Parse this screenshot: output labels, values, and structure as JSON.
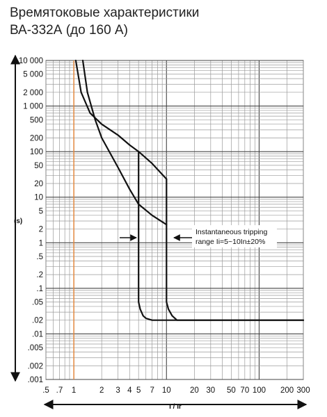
{
  "header": {
    "line1": "Времятоковые характеристики",
    "line2": "ВА-332А (до 160 А)"
  },
  "chart_data": {
    "type": "line",
    "xlabel": "I / Ir",
    "ylabel": "(s)",
    "xscale": "log",
    "yscale": "log",
    "xlim": [
      0.5,
      300
    ],
    "ylim": [
      0.001,
      10000
    ],
    "grid": true,
    "x_ticks": [
      {
        "v": 0.5,
        "t": ".5"
      },
      {
        "v": 0.7,
        "t": ".7"
      },
      {
        "v": 1,
        "t": "1"
      },
      {
        "v": 2,
        "t": "2"
      },
      {
        "v": 3,
        "t": "3"
      },
      {
        "v": 4,
        "t": "4"
      },
      {
        "v": 5,
        "t": "5"
      },
      {
        "v": 7,
        "t": "7"
      },
      {
        "v": 10,
        "t": "10"
      },
      {
        "v": 20,
        "t": "20"
      },
      {
        "v": 30,
        "t": "30"
      },
      {
        "v": 50,
        "t": "50"
      },
      {
        "v": 70,
        "t": "70"
      },
      {
        "v": 100,
        "t": "100"
      },
      {
        "v": 200,
        "t": "200"
      },
      {
        "v": 300,
        "t": "300"
      }
    ],
    "y_ticks": [
      {
        "v": 10000,
        "t": "10 000"
      },
      {
        "v": 5000,
        "t": "5 000"
      },
      {
        "v": 2000,
        "t": "2 000"
      },
      {
        "v": 1000,
        "t": "1 000"
      },
      {
        "v": 500,
        "t": "500"
      },
      {
        "v": 200,
        "t": "200"
      },
      {
        "v": 100,
        "t": "100"
      },
      {
        "v": 50,
        "t": "50"
      },
      {
        "v": 20,
        "t": "20"
      },
      {
        "v": 10,
        "t": "10"
      },
      {
        "v": 5,
        "t": "5"
      },
      {
        "v": 2,
        "t": "2"
      },
      {
        "v": 1,
        "t": "1"
      },
      {
        "v": 0.5,
        "t": ".5"
      },
      {
        "v": 0.2,
        "t": ".2"
      },
      {
        "v": 0.1,
        "t": ".1"
      },
      {
        "v": 0.05,
        "t": ".05"
      },
      {
        "v": 0.02,
        "t": ".02"
      },
      {
        "v": 0.01,
        "t": ".01"
      },
      {
        "v": 0.005,
        "t": ".005"
      },
      {
        "v": 0.002,
        "t": ".002"
      },
      {
        "v": 0.001,
        "t": ".001"
      }
    ],
    "series": [
      {
        "points": [
          [
            1.05,
            10000
          ],
          [
            1.2,
            2000
          ],
          [
            1.5,
            700
          ],
          [
            2,
            400
          ],
          [
            3,
            230
          ],
          [
            4,
            140
          ],
          [
            5,
            100
          ],
          [
            7,
            55
          ],
          [
            10,
            25
          ]
        ],
        "color": "#111111"
      },
      {
        "points": [
          [
            1.25,
            10000
          ],
          [
            1.4,
            2000
          ],
          [
            1.7,
            500
          ],
          [
            2,
            200
          ],
          [
            3,
            45
          ],
          [
            4,
            15
          ],
          [
            5,
            7
          ],
          [
            7,
            4
          ],
          [
            10,
            2.5
          ]
        ],
        "color": "#111111"
      },
      {
        "points": [
          [
            5,
            100
          ],
          [
            5,
            0.05
          ],
          [
            5.2,
            0.035
          ],
          [
            5.6,
            0.025
          ],
          [
            6,
            0.022
          ],
          [
            7,
            0.02
          ],
          [
            300,
            0.02
          ]
        ],
        "color": "#111111"
      },
      {
        "points": [
          [
            10,
            25
          ],
          [
            10,
            0.05
          ],
          [
            10.5,
            0.035
          ],
          [
            11.5,
            0.025
          ],
          [
            13,
            0.02
          ],
          [
            300,
            0.02
          ]
        ],
        "color": "#111111"
      }
    ],
    "reference_line": {
      "x": 1,
      "color": "#e8883a"
    },
    "annotation": {
      "line1": "Instantaneous tripping",
      "line2": "range Ii=5~10In±20%"
    }
  }
}
